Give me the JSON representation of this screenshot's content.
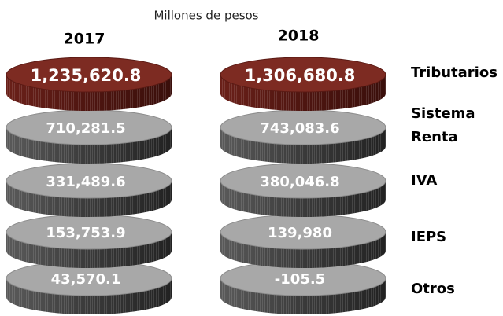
{
  "chart_data": {
    "type": "stacked-discs",
    "subtitle": "Millones de pesos",
    "categories": [
      "Tributarios",
      "Sistema Renta",
      "IVA",
      "IEPS",
      "Otros"
    ],
    "series": [
      {
        "name": "2017",
        "values": [
          1235620.8,
          710281.5,
          331489.6,
          153753.9,
          43570.1
        ],
        "value_labels": [
          "1,235,620.8",
          "710,281.5",
          "331,489.6",
          "153,753.9",
          "43,570.1"
        ]
      },
      {
        "name": "2018",
        "values": [
          1306680.8,
          743083.6,
          380046.8,
          139980,
          -105.5
        ],
        "value_labels": [
          "1,306,680.8",
          "743,083.6",
          "380,046.8",
          "139,980",
          "-105.5"
        ]
      }
    ],
    "colors": [
      "#7d2b22",
      "#a8a8a8"
    ]
  }
}
